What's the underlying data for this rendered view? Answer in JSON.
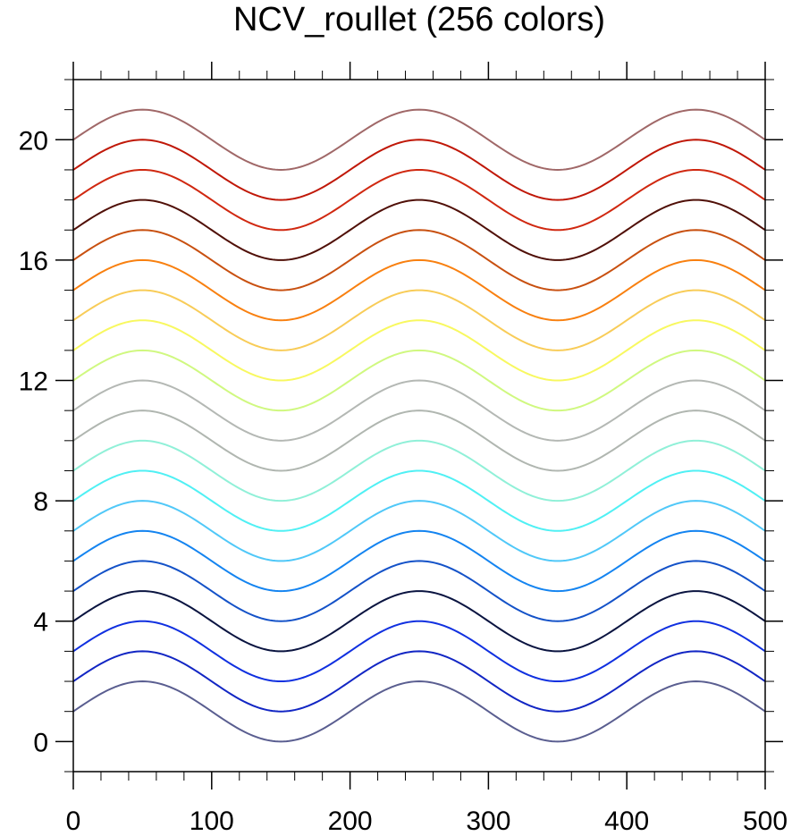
{
  "chart_data": {
    "type": "line",
    "title": "NCV_roullet (256 colors)",
    "xlabel": "",
    "ylabel": "",
    "xlim": [
      0,
      500
    ],
    "ylim": [
      -1,
      22
    ],
    "x_ticks": [
      0,
      100,
      200,
      300,
      400,
      500
    ],
    "y_ticks": [
      0,
      4,
      8,
      12,
      16,
      20
    ],
    "x_minor_step": 20,
    "y_minor_step": 1,
    "grid": false,
    "legend": "none",
    "curve": "y = offset + sin(2*pi*x/200)",
    "amplitude": 1,
    "period": 200,
    "series": [
      {
        "offset": 1,
        "color": "#5a5e90"
      },
      {
        "offset": 2,
        "color": "#1226c4"
      },
      {
        "offset": 3,
        "color": "#1030e0"
      },
      {
        "offset": 4,
        "color": "#0a1440"
      },
      {
        "offset": 5,
        "color": "#1452c8"
      },
      {
        "offset": 6,
        "color": "#1484f0"
      },
      {
        "offset": 7,
        "color": "#50c8f8"
      },
      {
        "offset": 8,
        "color": "#50f0f4"
      },
      {
        "offset": 9,
        "color": "#90f0d8"
      },
      {
        "offset": 10,
        "color": "#b0b6b0"
      },
      {
        "offset": 11,
        "color": "#b4b8b4"
      },
      {
        "offset": 12,
        "color": "#d0f880"
      },
      {
        "offset": 13,
        "color": "#f8f860"
      },
      {
        "offset": 14,
        "color": "#f8cc58"
      },
      {
        "offset": 15,
        "color": "#f88010"
      },
      {
        "offset": 16,
        "color": "#c85010"
      },
      {
        "offset": 17,
        "color": "#501008"
      },
      {
        "offset": 18,
        "color": "#d02810"
      },
      {
        "offset": 19,
        "color": "#c01808"
      },
      {
        "offset": 20,
        "color": "#a06868"
      }
    ]
  }
}
